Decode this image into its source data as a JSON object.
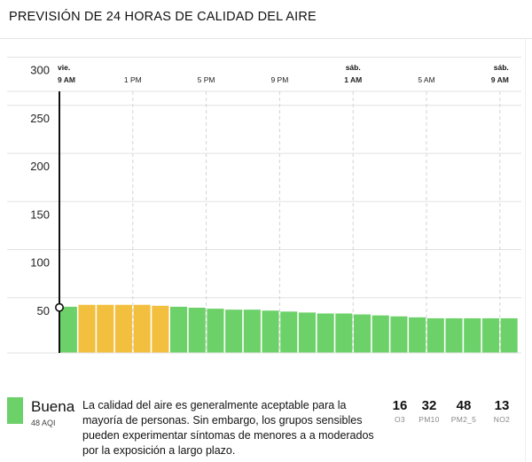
{
  "header": {
    "title": "PREVISIÓN DE 24 HORAS DE CALIDAD DEL AIRE"
  },
  "chart_data": {
    "type": "bar",
    "x_ticks": [
      {
        "day": "vie.",
        "time": "9 AM",
        "bold": true,
        "hour": 0
      },
      {
        "day": "",
        "time": "1 PM",
        "bold": false,
        "hour": 4
      },
      {
        "day": "",
        "time": "5 PM",
        "bold": false,
        "hour": 8
      },
      {
        "day": "",
        "time": "9 PM",
        "bold": false,
        "hour": 12
      },
      {
        "day": "sáb.",
        "time": "1 AM",
        "bold": true,
        "hour": 16
      },
      {
        "day": "",
        "time": "5 AM",
        "bold": false,
        "hour": 20
      },
      {
        "day": "sáb.",
        "time": "9 AM",
        "bold": true,
        "hour": 24
      }
    ],
    "y_ticks": [
      50,
      100,
      150,
      200,
      250,
      300
    ],
    "ylim": [
      0,
      320
    ],
    "values": [
      48,
      50,
      50,
      50,
      50,
      49,
      48,
      47,
      46,
      45,
      45,
      44,
      43,
      42,
      41,
      41,
      40,
      39,
      38,
      37,
      36,
      36,
      36,
      36,
      36
    ],
    "bar_colors": [
      "#6dd16a",
      "#f2bf3f",
      "#f2bf3f",
      "#f2bf3f",
      "#f2bf3f",
      "#f2bf3f",
      "#6dd16a",
      "#6dd16a",
      "#6dd16a",
      "#6dd16a",
      "#6dd16a",
      "#6dd16a",
      "#6dd16a",
      "#6dd16a",
      "#6dd16a",
      "#6dd16a",
      "#6dd16a",
      "#6dd16a",
      "#6dd16a",
      "#6dd16a",
      "#6dd16a",
      "#6dd16a",
      "#6dd16a",
      "#6dd16a",
      "#6dd16a"
    ],
    "current_index": 0,
    "grid": true
  },
  "summary": {
    "quality": "Buena",
    "aqi_label": "48 AQI",
    "color": "#6dd16a",
    "description": "La calidad del aire es generalmente aceptable para la mayoría de personas. Sin embargo, los grupos sensibles pueden experimentar síntomas de menores a a moderados por la exposición a largo plazo."
  },
  "pollutants": [
    {
      "value": "16",
      "name": "O3"
    },
    {
      "value": "32",
      "name": "PM10"
    },
    {
      "value": "48",
      "name": "PM2_5"
    },
    {
      "value": "13",
      "name": "NO2"
    }
  ]
}
